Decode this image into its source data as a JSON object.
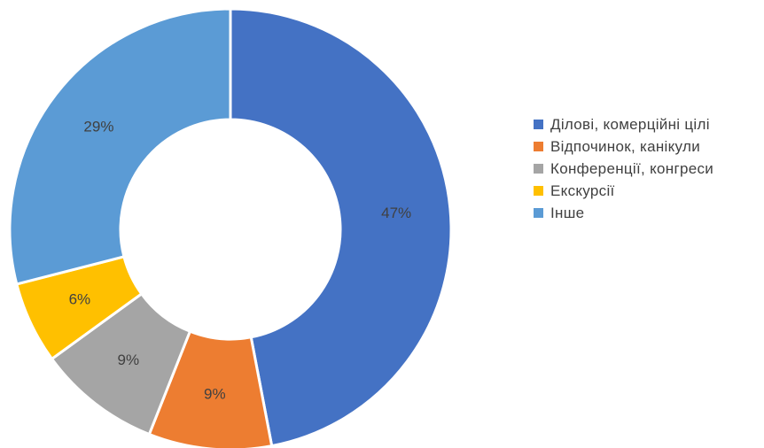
{
  "chart_data": {
    "type": "pie",
    "donut": true,
    "legend_position": "right",
    "categories": [
      "Ділові, комерційні цілі",
      "Відпочинок, канікули",
      "Конференції, конгреси",
      "Екскурсії",
      "Інше"
    ],
    "values": [
      47,
      9,
      9,
      6,
      29
    ],
    "data_labels": [
      "47%",
      "9%",
      "9%",
      "6%",
      "29%"
    ],
    "colors": [
      "#4472C4",
      "#ED7D31",
      "#A5A5A5",
      "#FFC000",
      "#5B9BD5"
    ]
  }
}
